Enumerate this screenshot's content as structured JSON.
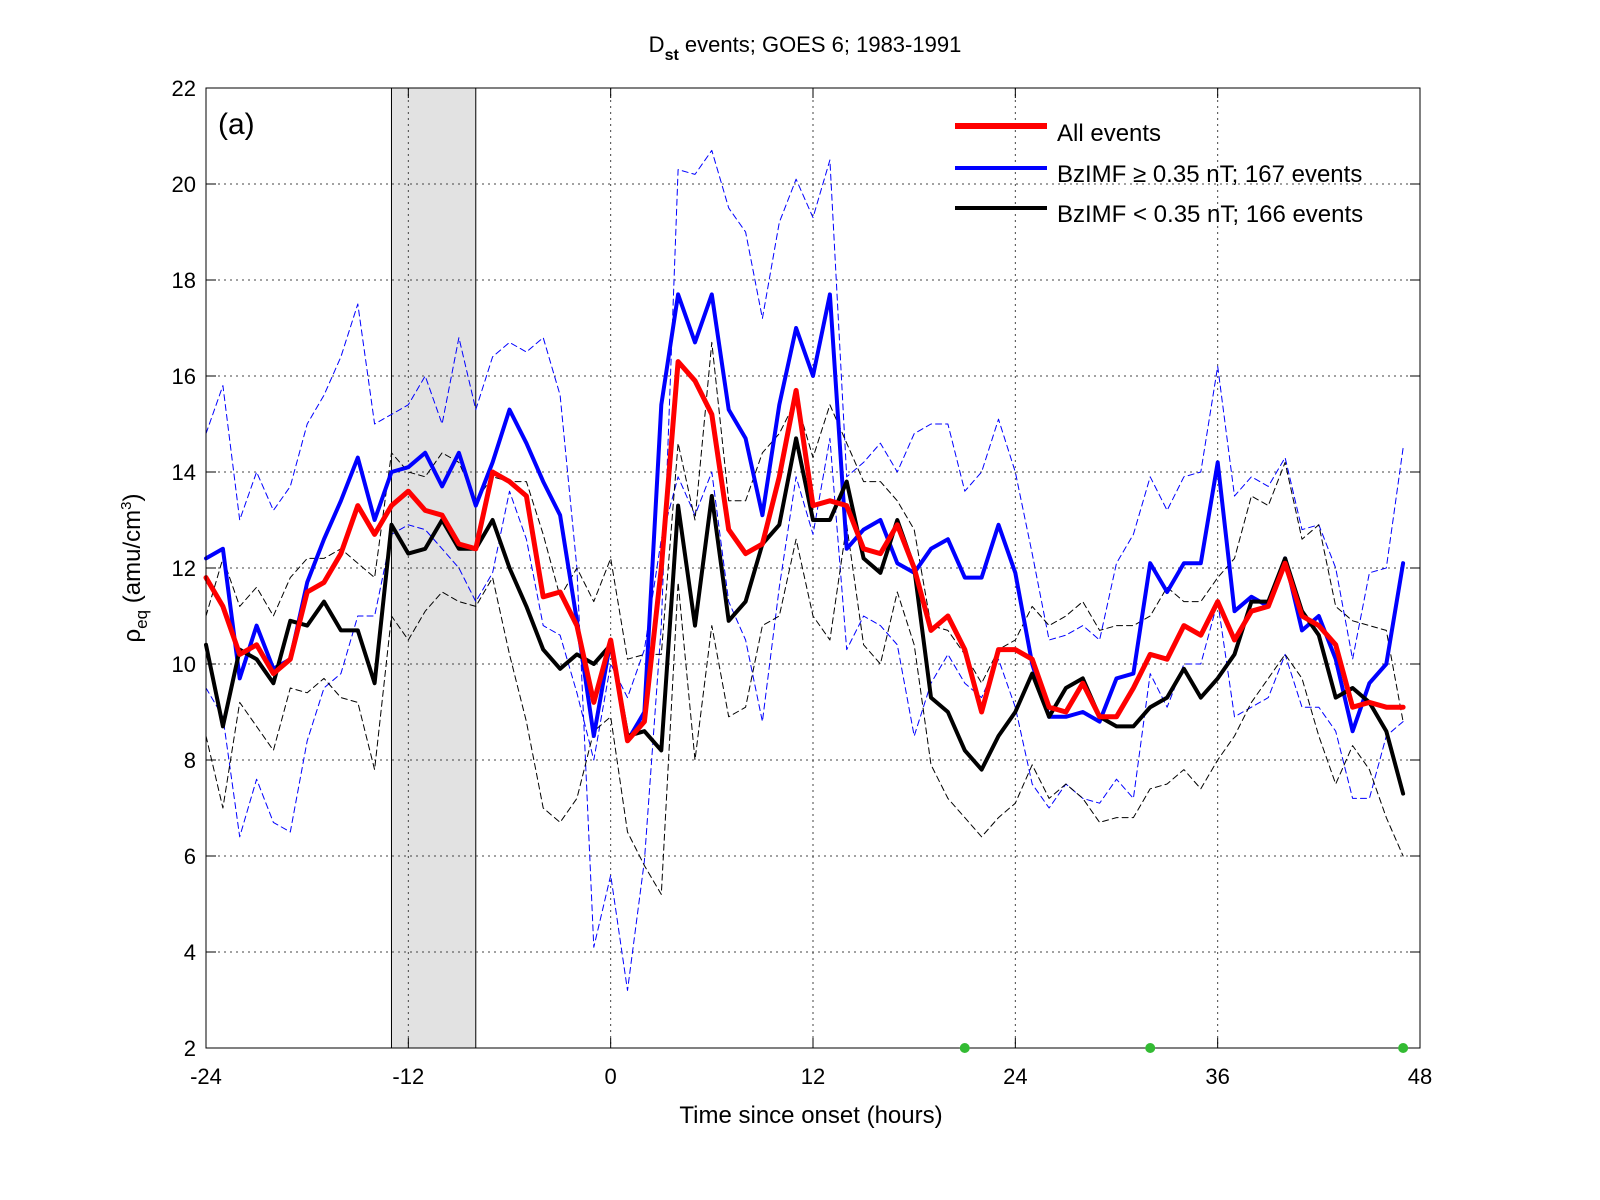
{
  "chart_data": {
    "type": "line",
    "title_main": "D",
    "title_sub": "st",
    "title_rest": " events; GOES 6; 1983-1991",
    "panel_label": "(a)",
    "xlabel": "Time since onset (hours)",
    "ylabel_rho": "ρ",
    "ylabel_sub": "eq",
    "ylabel_units": " (amu/cm",
    "ylabel_exp": "3",
    "ylabel_close": ")",
    "xlim": [
      -24,
      48
    ],
    "ylim": [
      2,
      22
    ],
    "xticks": [
      -24,
      -12,
      0,
      12,
      24,
      36,
      48
    ],
    "yticks": [
      2,
      4,
      6,
      8,
      10,
      12,
      14,
      16,
      18,
      20,
      22
    ],
    "xtick_labels": [
      "-24",
      "-12",
      "0",
      "12",
      "24",
      "36",
      "48"
    ],
    "ytick_labels": [
      "2",
      "4",
      "6",
      "8",
      "10",
      "12",
      "14",
      "16",
      "18",
      "20",
      "22"
    ],
    "grid": true,
    "legend_position": "top-right",
    "shaded_region": [
      -13,
      -8
    ],
    "x": [
      -24,
      -23,
      -22,
      -21,
      -20,
      -19,
      -18,
      -17,
      -16,
      -15,
      -14,
      -13,
      -12,
      -11,
      -10,
      -9,
      -8,
      -7,
      -6,
      -5,
      -4,
      -3,
      -2,
      -1,
      0,
      1,
      2,
      3,
      4,
      5,
      6,
      7,
      8,
      9,
      10,
      11,
      12,
      13,
      14,
      15,
      16,
      17,
      18,
      19,
      20,
      21,
      22,
      23,
      24,
      25,
      26,
      27,
      28,
      29,
      30,
      31,
      32,
      33,
      34,
      35,
      36,
      37,
      38,
      39,
      40,
      41,
      42,
      43,
      44,
      45,
      46,
      47
    ],
    "series": [
      {
        "name": "All events",
        "color": "#ff0000",
        "width": 5,
        "dash": "solid",
        "values": [
          11.8,
          11.2,
          10.2,
          10.4,
          9.8,
          10.1,
          11.5,
          11.7,
          12.3,
          13.3,
          12.7,
          13.3,
          13.6,
          13.2,
          13.1,
          12.5,
          12.4,
          14.0,
          13.8,
          13.5,
          11.4,
          11.5,
          10.8,
          9.2,
          10.5,
          8.4,
          8.8,
          12.0,
          16.3,
          15.9,
          15.2,
          12.8,
          12.3,
          12.5,
          13.9,
          15.7,
          13.3,
          13.4,
          13.3,
          12.4,
          12.3,
          12.9,
          12.0,
          10.7,
          11.0,
          10.3,
          9.0,
          10.3,
          10.3,
          10.1,
          9.1,
          9.0,
          9.6,
          8.9,
          8.9,
          9.5,
          10.2,
          10.1,
          10.8,
          10.6,
          11.3,
          10.5,
          11.1,
          11.2,
          12.1,
          11.0,
          10.8,
          10.4,
          9.1,
          9.2,
          9.1,
          9.1
        ]
      },
      {
        "name": "BzIMF ≥ 0.35 nT; 167 events",
        "color": "#0000ff",
        "width": 4,
        "dash": "solid",
        "values": [
          12.2,
          12.4,
          9.7,
          10.8,
          9.9,
          10.1,
          11.7,
          12.6,
          13.4,
          14.3,
          13.0,
          14.0,
          14.1,
          14.4,
          13.7,
          14.4,
          13.3,
          14.2,
          15.3,
          14.6,
          13.8,
          13.1,
          10.9,
          8.5,
          10.5,
          8.4,
          9.0,
          15.4,
          17.7,
          16.7,
          17.7,
          15.3,
          14.7,
          13.1,
          15.4,
          17.0,
          16.0,
          17.7,
          12.4,
          12.8,
          13.0,
          12.1,
          11.9,
          12.4,
          12.6,
          11.8,
          11.8,
          12.9,
          11.9,
          10.0,
          8.9,
          8.9,
          9.0,
          8.8,
          9.7,
          9.8,
          12.1,
          11.5,
          12.1,
          12.1,
          14.2,
          11.1,
          11.4,
          11.2,
          12.2,
          10.7,
          11.0,
          10.1,
          8.6,
          9.6,
          10.0,
          12.1
        ]
      },
      {
        "name": "BzIMF < 0.35 nT; 166 events",
        "color": "#000000",
        "width": 4,
        "dash": "solid",
        "values": [
          10.4,
          8.7,
          10.3,
          10.1,
          9.6,
          10.9,
          10.8,
          11.3,
          10.7,
          10.7,
          9.6,
          12.9,
          12.3,
          12.4,
          13.0,
          12.4,
          12.4,
          13.0,
          12.0,
          11.2,
          10.3,
          9.9,
          10.2,
          10.0,
          10.4,
          8.5,
          8.6,
          8.2,
          13.3,
          10.8,
          13.5,
          10.9,
          11.3,
          12.5,
          12.9,
          14.7,
          13.0,
          13.0,
          13.8,
          12.2,
          11.9,
          13.0,
          12.0,
          9.3,
          9.0,
          8.2,
          7.8,
          8.5,
          9.0,
          9.8,
          8.9,
          9.5,
          9.7,
          8.9,
          8.7,
          8.7,
          9.1,
          9.3,
          9.9,
          9.3,
          9.7,
          10.2,
          11.3,
          11.3,
          12.2,
          11.1,
          10.6,
          9.3,
          9.5,
          9.2,
          8.6,
          7.3
        ]
      },
      {
        "color": "#0000ff",
        "width": 1,
        "dash": "6,4",
        "values": [
          14.8,
          15.8,
          13.0,
          14.0,
          13.2,
          13.7,
          15.0,
          15.6,
          16.4,
          17.5,
          15.0,
          15.2,
          15.4,
          16.0,
          15.0,
          16.8,
          15.3,
          16.4,
          16.7,
          16.5,
          16.8,
          15.6,
          12.0,
          4.1,
          5.6,
          3.2,
          5.9,
          10.8,
          20.3,
          20.2,
          20.7,
          19.5,
          19.0,
          17.2,
          19.2,
          20.1,
          19.3,
          20.5,
          13.9,
          14.2,
          14.6,
          14.0,
          14.8,
          15.0,
          15.0,
          13.6,
          14.0,
          15.1,
          14.0,
          12.3,
          10.5,
          10.6,
          10.8,
          10.5,
          12.1,
          12.7,
          13.9,
          13.2,
          13.9,
          14.0,
          16.2,
          13.5,
          13.9,
          13.7,
          14.3,
          12.8,
          12.9,
          12.0,
          10.1,
          11.9,
          12.0,
          14.5
        ]
      },
      {
        "color": "#0000ff",
        "width": 1,
        "dash": "6,4",
        "values": [
          9.5,
          8.9,
          6.4,
          7.6,
          6.7,
          6.5,
          8.4,
          9.5,
          9.8,
          11.0,
          11.0,
          12.7,
          12.9,
          12.8,
          12.4,
          12.0,
          11.3,
          11.9,
          13.6,
          12.6,
          10.8,
          10.6,
          9.4,
          8.0,
          10.0,
          9.3,
          10.3,
          12.6,
          13.9,
          13.1,
          14.0,
          11.3,
          10.5,
          8.8,
          11.6,
          13.9,
          12.7,
          14.7,
          10.3,
          11.0,
          10.8,
          10.4,
          8.5,
          9.6,
          10.2,
          9.6,
          9.3,
          10.1,
          9.1,
          7.5,
          7.0,
          7.5,
          7.2,
          7.1,
          7.6,
          7.2,
          9.8,
          9.1,
          10.0,
          10.0,
          11.3,
          8.9,
          9.1,
          9.3,
          10.2,
          9.1,
          9.1,
          8.6,
          7.2,
          7.2,
          8.5,
          8.8
        ]
      },
      {
        "color": "#000000",
        "width": 1,
        "dash": "6,4",
        "values": [
          11.0,
          12.2,
          11.2,
          11.6,
          11.0,
          11.8,
          12.2,
          12.2,
          12.4,
          12.1,
          11.8,
          14.4,
          14.0,
          13.9,
          14.4,
          14.2,
          13.4,
          13.9,
          13.8,
          13.8,
          12.7,
          11.4,
          12.0,
          11.3,
          12.2,
          10.1,
          10.2,
          10.2,
          14.6,
          13.0,
          16.7,
          13.4,
          13.4,
          14.4,
          14.8,
          15.5,
          14.3,
          15.4,
          14.6,
          13.8,
          13.8,
          13.4,
          12.8,
          10.8,
          10.7,
          10.2,
          9.6,
          10.3,
          10.5,
          11.2,
          10.8,
          11.0,
          11.3,
          10.7,
          10.8,
          10.8,
          11.0,
          11.6,
          11.3,
          11.3,
          11.8,
          12.2,
          13.5,
          13.3,
          14.2,
          12.6,
          12.9,
          11.2,
          10.9,
          10.8,
          10.7,
          8.8
        ]
      },
      {
        "color": "#000000",
        "width": 1,
        "dash": "6,4",
        "values": [
          8.5,
          7.0,
          9.2,
          8.7,
          8.2,
          9.5,
          9.4,
          9.7,
          9.3,
          9.2,
          7.8,
          11.0,
          10.5,
          11.1,
          11.5,
          11.3,
          11.2,
          11.8,
          10.2,
          8.8,
          7.0,
          6.7,
          7.2,
          8.6,
          8.9,
          6.5,
          5.8,
          5.2,
          11.7,
          8.0,
          10.8,
          8.9,
          9.1,
          10.8,
          11.0,
          12.6,
          11.0,
          10.5,
          12.9,
          10.4,
          10.0,
          11.5,
          10.4,
          7.9,
          7.2,
          6.8,
          6.4,
          6.8,
          7.1,
          7.9,
          7.2,
          7.5,
          7.2,
          6.7,
          6.8,
          6.8,
          7.4,
          7.5,
          7.8,
          7.4,
          8.0,
          8.5,
          9.2,
          9.7,
          10.2,
          9.7,
          8.5,
          7.5,
          8.3,
          7.8,
          6.8,
          6.0
        ]
      }
    ],
    "markers": {
      "color": "#33bb33",
      "x": [
        21,
        32,
        47
      ],
      "y": [
        2,
        2,
        2
      ]
    }
  }
}
